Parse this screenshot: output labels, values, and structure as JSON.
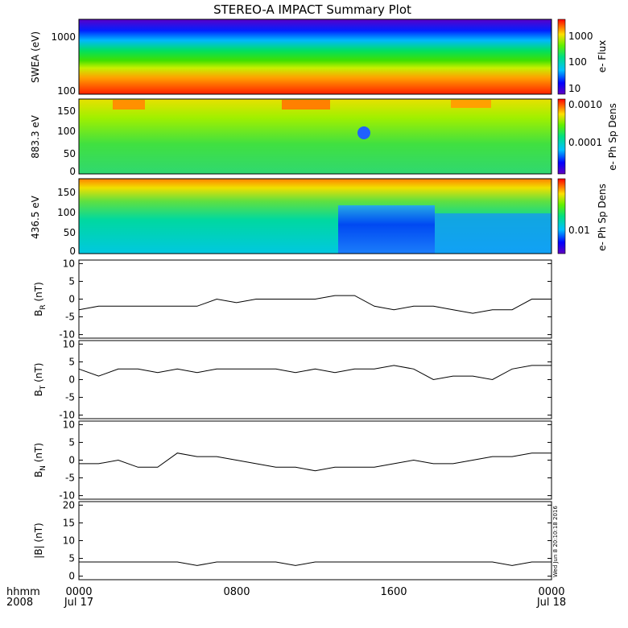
{
  "title": "STEREO-A IMPACT Summary Plot",
  "footer": {
    "hhmm": "hhmm",
    "year": "2008",
    "ticks": [
      "0000",
      "0800",
      "1600",
      "0000"
    ],
    "dates": [
      "Jul 17",
      "Jul 18"
    ]
  },
  "timestamp": "Wed Jun  8 20:10:18 2016",
  "colors": {
    "background": "#ffffff",
    "axis": "#000000",
    "line": "#000000"
  },
  "chart_data": [
    {
      "type": "heatmap",
      "ylabel": "SWEA (eV)",
      "yticks": [
        "1000",
        "100"
      ],
      "colorbar": {
        "label": "e- Flux",
        "ticks": [
          "1000",
          "100",
          "10"
        ],
        "scale": "log"
      },
      "scale": "log",
      "ylim": [
        100,
        2000
      ]
    },
    {
      "type": "heatmap",
      "ylabel": "883.3 eV",
      "yticks": [
        "0",
        "50",
        "100",
        "150"
      ],
      "ylim": [
        0,
        180
      ],
      "colorbar": {
        "label": "e- Ph Sp Dens",
        "ticks": [
          "0.0010",
          "0.0001"
        ],
        "scale": "log"
      }
    },
    {
      "type": "heatmap",
      "ylabel": "436.5 eV",
      "yticks": [
        "0",
        "50",
        "100",
        "150"
      ],
      "ylim": [
        0,
        180
      ],
      "colorbar": {
        "label": "e- Ph Sp Dens",
        "ticks": [
          "0.01"
        ],
        "scale": "log"
      }
    },
    {
      "type": "line",
      "ylabel_main": "B",
      "ylabel_sub": "R",
      "ylabel_unit": " (nT)",
      "yticks": [
        "10",
        "5",
        "0",
        "-5",
        "-10"
      ],
      "ylim": [
        -11,
        11
      ],
      "x_hours": [
        0,
        1,
        2,
        3,
        4,
        5,
        6,
        7,
        8,
        9,
        10,
        11,
        12,
        13,
        14,
        15,
        16,
        17,
        18,
        19,
        20,
        21,
        22,
        23,
        24
      ],
      "values": [
        -3,
        -2,
        -2,
        -2,
        -2,
        -2,
        -2,
        0,
        -1,
        0,
        0,
        0,
        0,
        1,
        1,
        -2,
        -3,
        -2,
        -2,
        -3,
        -4,
        -3,
        -3,
        0,
        0
      ]
    },
    {
      "type": "line",
      "ylabel_main": "B",
      "ylabel_sub": "T",
      "ylabel_unit": " (nT)",
      "yticks": [
        "10",
        "5",
        "0",
        "-5",
        "-10"
      ],
      "ylim": [
        -11,
        11
      ],
      "x_hours": [
        0,
        1,
        2,
        3,
        4,
        5,
        6,
        7,
        8,
        9,
        10,
        11,
        12,
        13,
        14,
        15,
        16,
        17,
        18,
        19,
        20,
        21,
        22,
        23,
        24
      ],
      "values": [
        3,
        1,
        3,
        3,
        2,
        3,
        2,
        3,
        3,
        3,
        3,
        2,
        3,
        2,
        3,
        3,
        4,
        3,
        0,
        1,
        1,
        0,
        3,
        4,
        4
      ]
    },
    {
      "type": "line",
      "ylabel_main": "B",
      "ylabel_sub": "N",
      "ylabel_unit": " (nT)",
      "yticks": [
        "10",
        "5",
        "0",
        "-5",
        "-10"
      ],
      "ylim": [
        -11,
        11
      ],
      "x_hours": [
        0,
        1,
        2,
        3,
        4,
        5,
        6,
        7,
        8,
        9,
        10,
        11,
        12,
        13,
        14,
        15,
        16,
        17,
        18,
        19,
        20,
        21,
        22,
        23,
        24
      ],
      "values": [
        -1,
        -1,
        0,
        -2,
        -2,
        2,
        1,
        1,
        0,
        -1,
        -2,
        -2,
        -3,
        -2,
        -2,
        -2,
        -1,
        0,
        -1,
        -1,
        0,
        1,
        1,
        2,
        2
      ]
    },
    {
      "type": "line",
      "ylabel_main": "|B|",
      "ylabel_sub": "",
      "ylabel_unit": " (nT)",
      "yticks": [
        "20",
        "15",
        "10",
        "5",
        "0"
      ],
      "ylim": [
        -1,
        21
      ],
      "x_hours": [
        0,
        1,
        2,
        3,
        4,
        5,
        6,
        7,
        8,
        9,
        10,
        11,
        12,
        13,
        14,
        15,
        16,
        17,
        18,
        19,
        20,
        21,
        22,
        23,
        24
      ],
      "values": [
        4,
        4,
        4,
        4,
        4,
        4,
        3,
        4,
        4,
        4,
        4,
        3,
        4,
        4,
        4,
        4,
        4,
        4,
        4,
        4,
        4,
        4,
        3,
        4,
        4
      ]
    }
  ]
}
